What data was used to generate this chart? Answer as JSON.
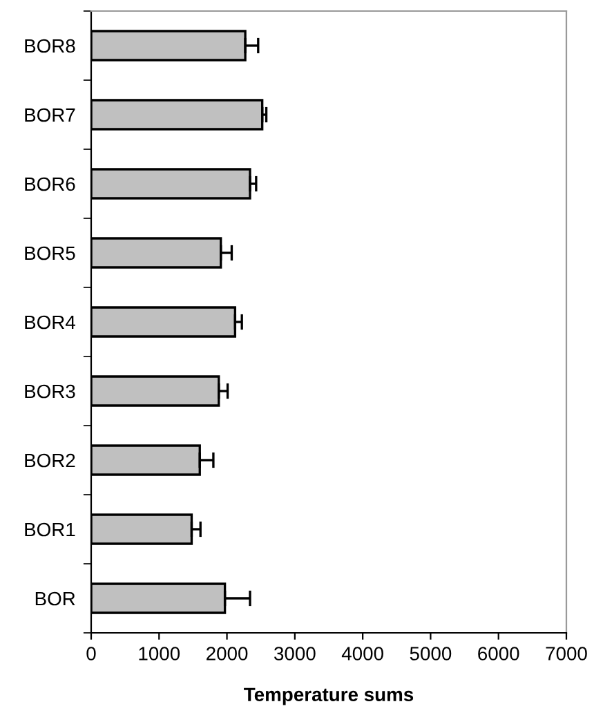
{
  "chart_data": {
    "type": "bar",
    "orientation": "horizontal",
    "xlabel": "Temperature sums",
    "categories": [
      "BOR8",
      "BOR7",
      "BOR6",
      "BOR5",
      "BOR4",
      "BOR3",
      "BOR2",
      "BOR1",
      "BOR"
    ],
    "values": [
      2270,
      2520,
      2340,
      1910,
      2120,
      1880,
      1600,
      1480,
      1970
    ],
    "errors": [
      [
        2270,
        2460
      ],
      [
        2520,
        2580
      ],
      [
        2340,
        2430
      ],
      [
        1910,
        2070
      ],
      [
        2120,
        2220
      ],
      [
        1880,
        2010
      ],
      [
        1600,
        1800
      ],
      [
        1480,
        1610
      ],
      [
        1970,
        2340
      ]
    ],
    "color": "#c0c0c0",
    "xlim": [
      0,
      7000
    ],
    "xticks": [
      0,
      1000,
      2000,
      3000,
      4000,
      5000,
      6000,
      7000
    ],
    "grid": false,
    "legend": false
  }
}
